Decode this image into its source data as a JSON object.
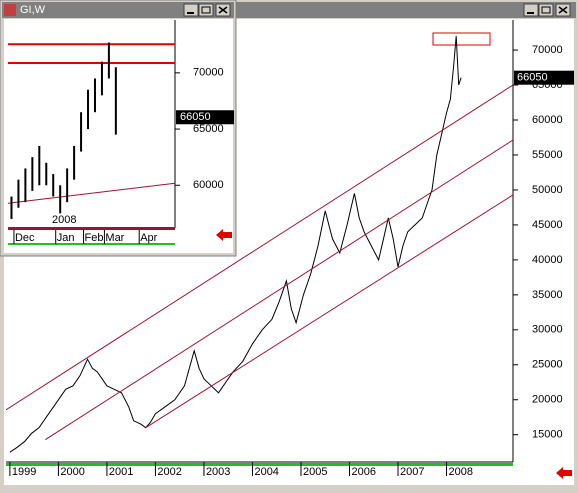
{
  "chart_data": [
    {
      "type": "line",
      "xlim": [
        1998.92,
        2009.37
      ],
      "ylim": [
        11100,
        74300
      ],
      "xticks": [
        1999,
        2000,
        2001,
        2002,
        2003,
        2004,
        2005,
        2006,
        2007,
        2008
      ],
      "yticks": [
        15000,
        20000,
        25000,
        30000,
        35000,
        40000,
        45000,
        50000,
        55000,
        60000,
        65000,
        70000
      ],
      "last_value": 66050,
      "series": [
        {
          "color": "#000000",
          "x": [
            1999.0,
            1999.15,
            1999.3,
            1999.45,
            1999.6,
            1999.8,
            2000.0,
            2000.15,
            2000.3,
            2000.45,
            2000.6,
            2000.7,
            2000.8,
            2000.9,
            2001.0,
            2001.15,
            2001.3,
            2001.45,
            2001.55,
            2001.7,
            2001.8,
            2001.9,
            2002.0,
            2002.2,
            2002.4,
            2002.6,
            2002.8,
            2002.9,
            2003.0,
            2003.15,
            2003.3,
            2003.5,
            2003.6,
            2003.8,
            2004.0,
            2004.2,
            2004.4,
            2004.55,
            2004.7,
            2004.8,
            2004.9,
            2005.05,
            2005.2,
            2005.35,
            2005.5,
            2005.65,
            2005.8,
            2005.95,
            2006.1,
            2006.2,
            2006.3,
            2006.45,
            2006.6,
            2006.7,
            2006.8,
            2006.9,
            2007.0,
            2007.1,
            2007.2,
            2007.35,
            2007.5,
            2007.6,
            2007.7,
            2007.8,
            2007.9,
            2008.0,
            2008.08,
            2008.15,
            2008.2,
            2008.25,
            2008.3
          ],
          "values": [
            12500,
            13200,
            14000,
            15200,
            16000,
            18000,
            20000,
            21500,
            22000,
            23500,
            25800,
            24500,
            24000,
            23000,
            22000,
            21500,
            21000,
            19000,
            17000,
            16500,
            16000,
            16800,
            18000,
            19000,
            20000,
            22000,
            27000,
            24500,
            23000,
            22000,
            21000,
            23000,
            24000,
            25500,
            28000,
            30000,
            31500,
            34000,
            37000,
            33000,
            31000,
            35000,
            38000,
            42000,
            47000,
            43000,
            41000,
            45000,
            49500,
            46000,
            44000,
            42000,
            40000,
            43000,
            46000,
            43000,
            39000,
            42000,
            44000,
            45000,
            46000,
            48000,
            50000,
            55000,
            58000,
            61000,
            63000,
            68000,
            72000,
            65000,
            66050
          ]
        },
        {
          "color": "#a01030",
          "x": [
            1998.92,
            2009.37
          ],
          "values": [
            18570,
            65000
          ]
        },
        {
          "color": "#a01030",
          "x": [
            1999.73,
            2009.37
          ],
          "values": [
            14290,
            57140
          ]
        },
        {
          "color": "#a01030",
          "x": [
            2001.8,
            2009.37
          ],
          "values": [
            16000,
            49290
          ]
        }
      ]
    },
    {
      "type": "range-bar",
      "window_title": "GI,W",
      "categories": [
        null,
        "Dec",
        null,
        null,
        null,
        null,
        null,
        "Jan",
        null,
        null,
        null,
        "Feb",
        null,
        null,
        "Mar",
        null,
        null,
        null,
        null,
        "Apr",
        null,
        null,
        null,
        null
      ],
      "year_label": "2008",
      "ylim": [
        56200,
        74700
      ],
      "yticks": [
        60000,
        65000,
        70000
      ],
      "last_value": 66050,
      "color": "#000000",
      "high": [
        59000,
        60500,
        61500,
        62500,
        63500,
        62000,
        61000,
        60000,
        61500,
        63500,
        66500,
        68500,
        69500,
        71000,
        72700,
        70500,
        null,
        null,
        null,
        null,
        null,
        null,
        null,
        null
      ],
      "low": [
        57000,
        58000,
        58500,
        59500,
        60000,
        60000,
        59000,
        57500,
        58500,
        60500,
        63000,
        65000,
        66500,
        68000,
        69500,
        64500,
        null,
        null,
        null,
        null,
        null,
        null,
        null,
        null
      ],
      "hlines": [
        72540,
        70880
      ],
      "hline_color": "#e00000",
      "trendline": [
        58400,
        60180
      ],
      "trend_color": "#a01030"
    }
  ]
}
